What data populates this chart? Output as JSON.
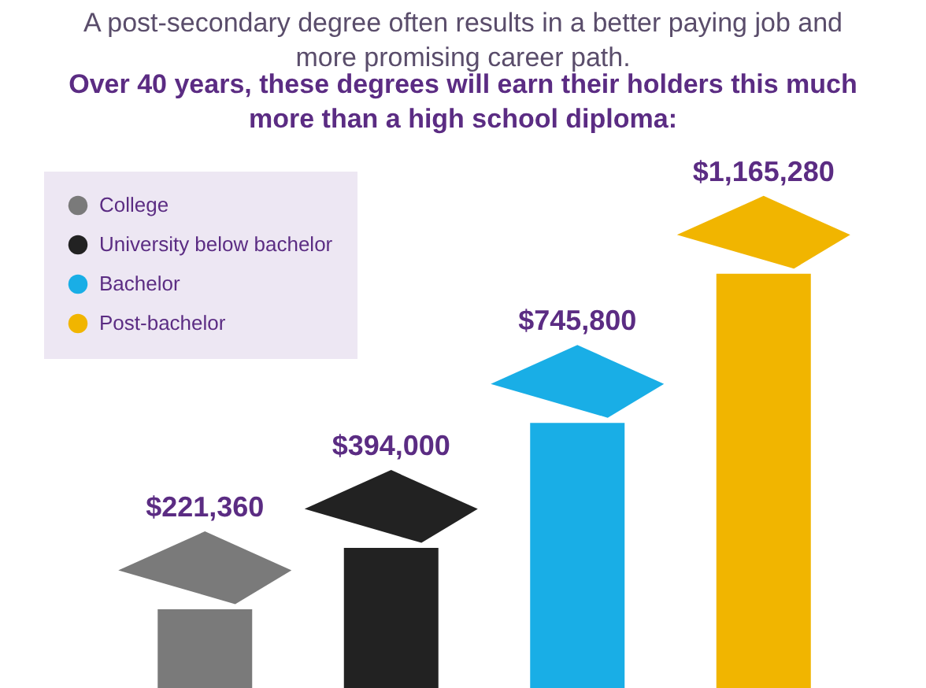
{
  "chart_data": {
    "type": "bar",
    "title": "A post-secondary degree often results in a better paying job and more promising career path.",
    "subtitle": "Over 40 years, these degrees will earn their holders this much more than a high school diploma:",
    "categories": [
      null,
      null,
      null,
      null
    ],
    "series": [
      {
        "name": "College",
        "color": "#7a7a7a",
        "values": [
          221360,
          null,
          null,
          null
        ],
        "value_labels": [
          "$221,360",
          null,
          null,
          null
        ]
      },
      {
        "name": "University below bachelor",
        "color": "#222222",
        "values": [
          null,
          394000,
          null,
          null
        ],
        "value_labels": [
          null,
          "$394,000",
          null,
          null
        ]
      },
      {
        "name": "Bachelor",
        "color": "#19aee6",
        "values": [
          null,
          null,
          745800,
          null
        ],
        "value_labels": [
          null,
          null,
          "$745,800",
          null
        ]
      },
      {
        "name": "Post-bachelor",
        "color": "#f1b500",
        "values": [
          null,
          null,
          null,
          1165280
        ],
        "value_labels": [
          null,
          null,
          null,
          "$1,165,280"
        ]
      }
    ],
    "stacked": true,
    "legend": "top left",
    "tick_labels": false
  }
}
